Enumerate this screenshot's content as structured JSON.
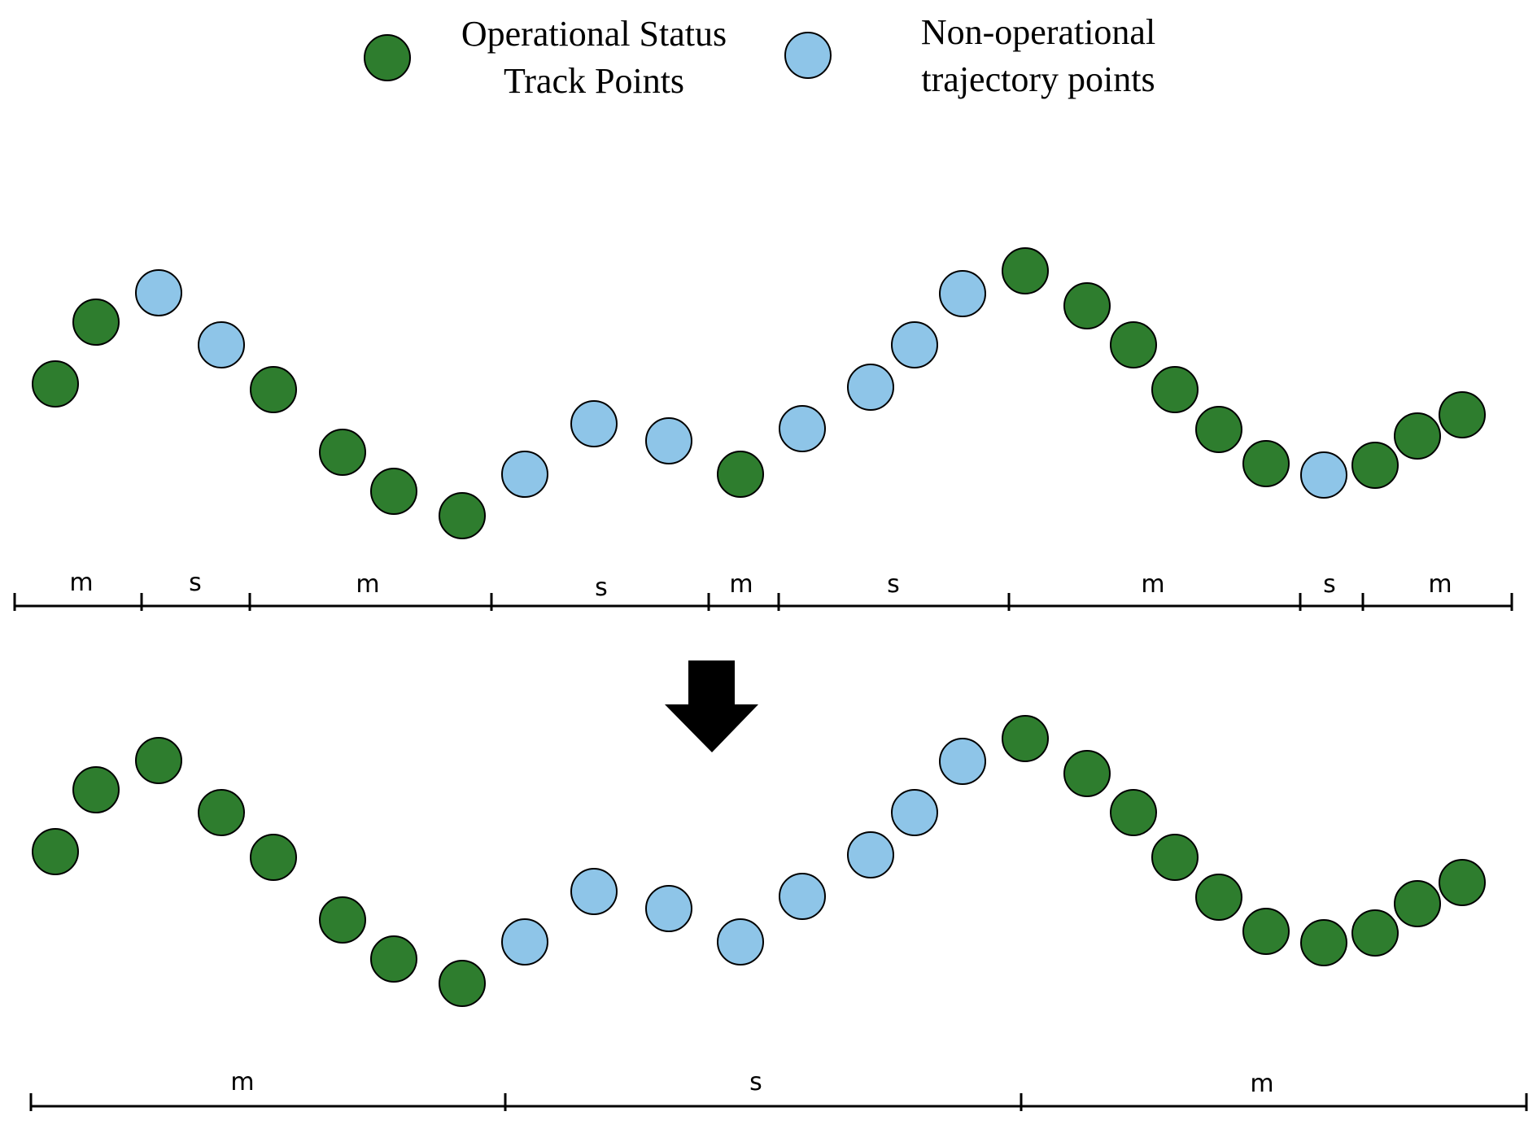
{
  "legend": {
    "operational_line1": "Operational Status",
    "operational_line2": "Track Points",
    "nonoperational_line1": "Non-operational",
    "nonoperational_line2": "trajectory points"
  },
  "colors": {
    "operational": "#2e7d2e",
    "nonoperational": "#8ec5e8",
    "arrow": "#000000"
  },
  "top_sequence": [
    "op",
    "op",
    "non",
    "non",
    "op",
    "op",
    "op",
    "op",
    "non",
    "non",
    "non",
    "op",
    "non",
    "non",
    "non",
    "non",
    "op",
    "op",
    "op",
    "op",
    "op",
    "op",
    "non",
    "op",
    "op",
    "op"
  ],
  "bottom_sequence": [
    "op",
    "op",
    "op",
    "op",
    "op",
    "op",
    "op",
    "op",
    "non",
    "non",
    "non",
    "non",
    "non",
    "non",
    "non",
    "non",
    "op",
    "op",
    "op",
    "op",
    "op",
    "op",
    "op",
    "op",
    "op",
    "op"
  ],
  "top_segments": [
    "m",
    "s",
    "m",
    "s",
    "m",
    "s",
    "m",
    "s",
    "m"
  ],
  "bottom_segments": [
    "m",
    "s",
    "m"
  ],
  "arrow_icon": "down-arrow-icon"
}
